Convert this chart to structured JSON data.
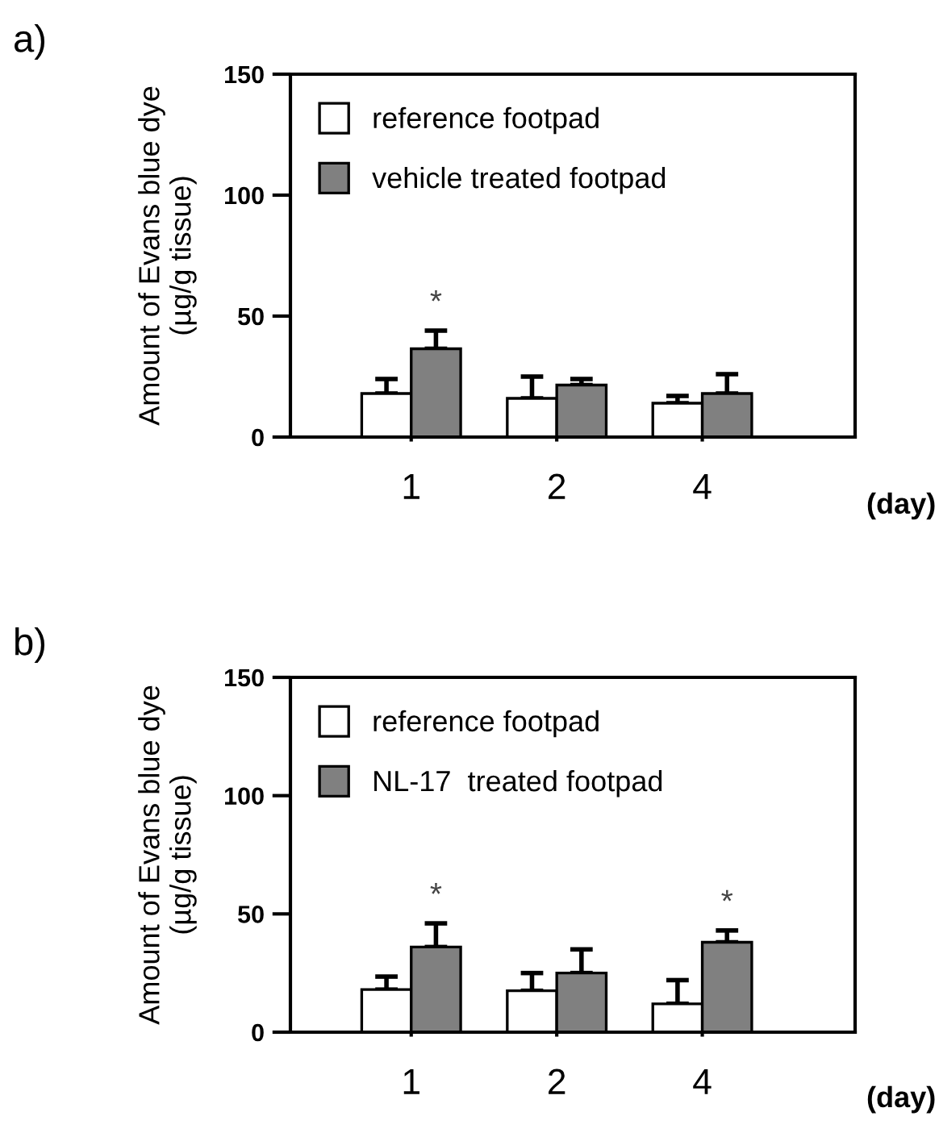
{
  "chart_data": [
    {
      "type": "bar",
      "categories": [
        "1",
        "2",
        "4"
      ],
      "xlabel": "(day)",
      "ylabel": "Amount of Evans blue dye\n(µg/g tissue)",
      "ylim": [
        0,
        150
      ],
      "yticks": [
        0,
        50,
        100,
        150
      ],
      "grid": false,
      "legend": "top left",
      "series": [
        {
          "name": "reference footpad",
          "color": "#ffffff",
          "values": [
            18,
            16,
            14
          ],
          "errors": [
            [
              18,
              24
            ],
            [
              16,
              25
            ],
            [
              14,
              17
            ]
          ]
        },
        {
          "name": "vehicle treated footpad",
          "color": "#808080",
          "values": [
            36.5,
            21.5,
            18
          ],
          "errors": [
            [
              36.5,
              44
            ],
            [
              21.5,
              24
            ],
            [
              18,
              26
            ]
          ]
        }
      ],
      "annotations": [
        "a)",
        "*"
      ]
    },
    {
      "type": "bar",
      "categories": [
        "1",
        "2",
        "4"
      ],
      "xlabel": "(day)",
      "ylabel": "Amount of Evans blue dye\n(µg/g tissue)",
      "ylim": [
        0,
        150
      ],
      "yticks": [
        0,
        50,
        100,
        150
      ],
      "grid": false,
      "legend": "top left",
      "series": [
        {
          "name": "reference footpad",
          "color": "#ffffff",
          "values": [
            18,
            17.5,
            12
          ],
          "errors": [
            [
              18,
              23.5
            ],
            [
              17.5,
              25
            ],
            [
              12,
              22
            ]
          ]
        },
        {
          "name": "NL-17  treated footpad",
          "color": "#808080",
          "values": [
            36,
            25,
            38
          ],
          "errors": [
            [
              36,
              46
            ],
            [
              25,
              35
            ],
            [
              38,
              43
            ]
          ]
        }
      ],
      "annotations": [
        "b)",
        "*",
        "*"
      ]
    }
  ]
}
